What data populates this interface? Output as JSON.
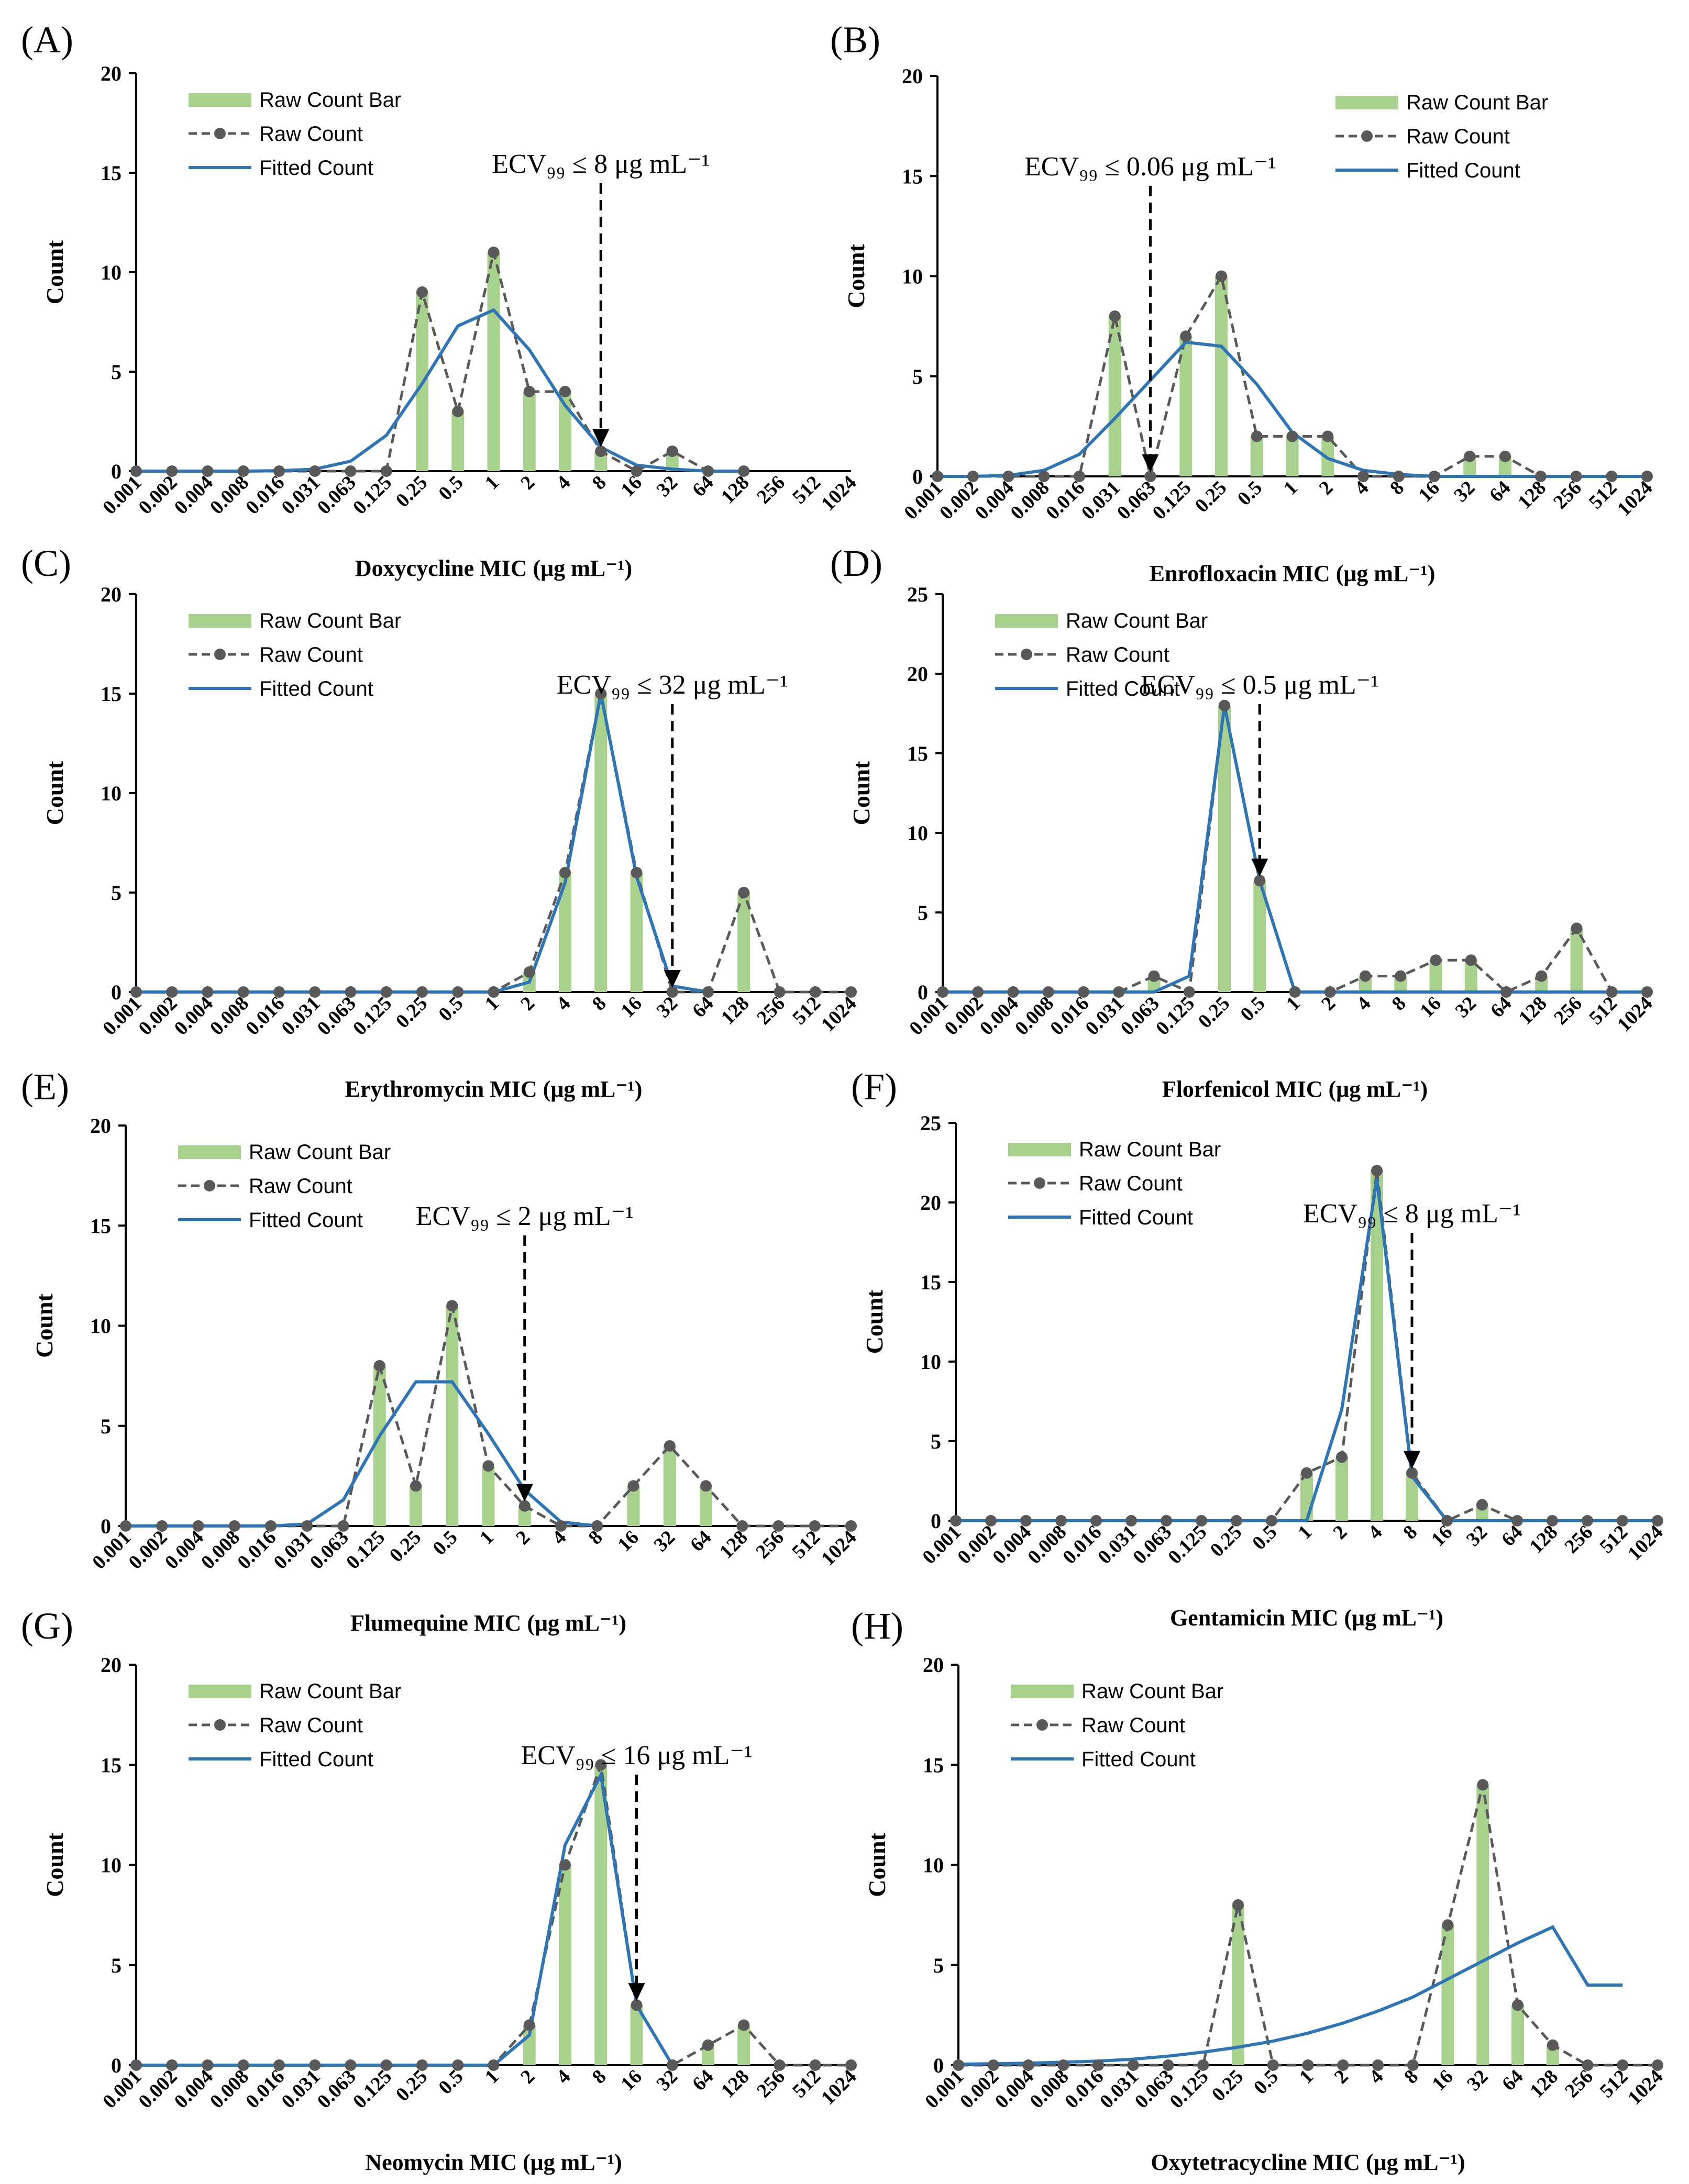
{
  "figure": {
    "categories": [
      "0.001",
      "0.002",
      "0.004",
      "0.008",
      "0.016",
      "0.031",
      "0.063",
      "0.125",
      "0.25",
      "0.5",
      "1",
      "2",
      "4",
      "8",
      "16",
      "32",
      "64",
      "128",
      "256",
      "512",
      "1024"
    ],
    "legend": {
      "bar": "Raw Count Bar",
      "raw": "Raw Count",
      "fit": "Fitted Count"
    },
    "ylabel": "Count",
    "colors": {
      "bar": "#a9d18e",
      "raw": "#595959",
      "fit": "#2e75b6",
      "axis": "#000000"
    }
  },
  "chart_data": [
    {
      "panel": "(A)",
      "type": "bar",
      "title": "",
      "xlabel": "Doxycycline MIC (μg mL⁻¹)",
      "ylabel": "Count",
      "ylim": [
        0,
        20
      ],
      "yticks": [
        0,
        5,
        10,
        15,
        20
      ],
      "legend_position": "top-left",
      "ecv": {
        "index": 13,
        "label": "ECV₉₉ ≤ 8 μg mL⁻¹"
      },
      "raw": [
        0,
        0,
        0,
        0,
        0,
        0,
        0,
        0,
        9,
        3,
        11,
        4,
        4,
        1,
        0,
        1,
        0,
        0,
        null,
        null,
        null
      ],
      "fitted": [
        0,
        0,
        0,
        0,
        0.02,
        0.1,
        0.5,
        1.8,
        4.4,
        7.3,
        8.1,
        6.1,
        3.3,
        1.2,
        0.3,
        0.1,
        0,
        0,
        null,
        null,
        null
      ]
    },
    {
      "panel": "(B)",
      "type": "bar",
      "title": "",
      "xlabel": "Enrofloxacin MIC (μg mL⁻¹)",
      "ylabel": "Count",
      "ylim": [
        0,
        20
      ],
      "yticks": [
        0,
        5,
        10,
        15,
        20
      ],
      "legend_position": "top-right",
      "ecv": {
        "index": 6,
        "label": "ECV₉₉ ≤ 0.06 μg mL⁻¹"
      },
      "raw": [
        0,
        0,
        0,
        0,
        0,
        8,
        0,
        7,
        10,
        2,
        2,
        2,
        0,
        0,
        0,
        1,
        1,
        0,
        0,
        0,
        0
      ],
      "fitted": [
        0,
        0,
        0.05,
        0.3,
        1.1,
        2.9,
        4.8,
        6.7,
        6.5,
        4.6,
        2.2,
        0.9,
        0.3,
        0.1,
        0,
        0,
        0,
        0,
        0,
        0,
        0
      ]
    },
    {
      "panel": "(C)",
      "type": "bar",
      "title": "",
      "xlabel": "Erythromycin MIC (μg mL⁻¹)",
      "ylabel": "Count",
      "ylim": [
        0,
        20
      ],
      "yticks": [
        0,
        5,
        10,
        15,
        20
      ],
      "legend_position": "top-left",
      "ecv": {
        "index": 15,
        "label": "ECV₉₉ ≤ 32 μg mL⁻¹"
      },
      "raw": [
        0,
        0,
        0,
        0,
        0,
        0,
        0,
        0,
        0,
        0,
        0,
        1,
        6,
        15,
        6,
        0,
        0,
        5,
        0,
        0,
        0
      ],
      "fitted": [
        0,
        0,
        0,
        0,
        0,
        0,
        0,
        0,
        0,
        0,
        0,
        0.5,
        5.5,
        15,
        5.8,
        0.3,
        0,
        null,
        null,
        null,
        null
      ]
    },
    {
      "panel": "(D)",
      "type": "bar",
      "title": "",
      "xlabel": "Florfenicol MIC (μg mL⁻¹)",
      "ylabel": "Count",
      "ylim": [
        0,
        25
      ],
      "yticks": [
        0,
        5,
        10,
        15,
        20,
        25
      ],
      "legend_position": "top-left",
      "ecv": {
        "index": 9,
        "label": "ECV₉₉ ≤ 0.5 μg mL⁻¹"
      },
      "raw": [
        0,
        0,
        0,
        0,
        0,
        0,
        1,
        0,
        18,
        7,
        0,
        0,
        1,
        1,
        2,
        2,
        0,
        1,
        4,
        0,
        0
      ],
      "fitted": [
        0,
        0,
        0,
        0,
        0,
        0,
        0,
        1,
        18,
        7,
        0,
        0,
        0,
        0,
        0,
        0,
        0,
        0,
        0,
        0,
        0
      ]
    },
    {
      "panel": "(E)",
      "type": "bar",
      "title": "",
      "xlabel": "Flumequine MIC (μg mL⁻¹)",
      "ylabel": "Count",
      "ylim": [
        0,
        20
      ],
      "yticks": [
        0,
        5,
        10,
        15,
        20
      ],
      "legend_position": "top-left",
      "ecv": {
        "index": 11,
        "label": "ECV₉₉ ≤ 2 μg mL⁻¹"
      },
      "raw": [
        0,
        0,
        0,
        0,
        0,
        0,
        0,
        8,
        2,
        11,
        3,
        1,
        0,
        0,
        2,
        4,
        2,
        0,
        0,
        0,
        0
      ],
      "fitted": [
        0,
        0,
        0,
        0,
        0,
        0.1,
        1.3,
        4.5,
        7.2,
        7.2,
        4.6,
        1.8,
        0.2,
        0,
        null,
        null,
        null,
        null,
        null,
        null,
        null
      ]
    },
    {
      "panel": "(F)",
      "type": "bar",
      "title": "",
      "xlabel": "Gentamicin MIC (μg mL⁻¹)",
      "ylabel": "Count",
      "ylim": [
        0,
        25
      ],
      "yticks": [
        0,
        5,
        10,
        15,
        20,
        25
      ],
      "legend_position": "top-left",
      "ecv": {
        "index": 13,
        "label": "ECV₉₉ ≤ 8 μg mL⁻¹"
      },
      "raw": [
        0,
        0,
        0,
        0,
        0,
        0,
        0,
        0,
        0,
        0,
        3,
        4,
        22,
        3,
        0,
        1,
        0,
        0,
        0,
        0,
        0
      ],
      "fitted": [
        0,
        0,
        0,
        0,
        0,
        0,
        0,
        0,
        0,
        0,
        0,
        7,
        21.5,
        2.8,
        0,
        0,
        0,
        0,
        0,
        0,
        0
      ]
    },
    {
      "panel": "(G)",
      "type": "bar",
      "title": "",
      "xlabel": "Neomycin MIC (μg mL⁻¹)",
      "ylabel": "Count",
      "ylim": [
        0,
        20
      ],
      "yticks": [
        0,
        5,
        10,
        15,
        20
      ],
      "legend_position": "top-left",
      "ecv": {
        "index": 14,
        "label": "ECV₉₉ ≤ 16 μg mL⁻¹"
      },
      "raw": [
        0,
        0,
        0,
        0,
        0,
        0,
        0,
        0,
        0,
        0,
        0,
        2,
        10,
        15,
        3,
        0,
        1,
        2,
        0,
        0,
        0
      ],
      "fitted": [
        0,
        0,
        0,
        0,
        0,
        0,
        0,
        0,
        0,
        0,
        0,
        1.5,
        11,
        14.5,
        3,
        0,
        null,
        null,
        null,
        null,
        null
      ]
    },
    {
      "panel": "(H)",
      "type": "bar",
      "title": "",
      "xlabel": "Oxytetracycline MIC (μg mL⁻¹)",
      "ylabel": "Count",
      "ylim": [
        0,
        20
      ],
      "yticks": [
        0,
        5,
        10,
        15,
        20
      ],
      "legend_position": "top-left",
      "ecv": null,
      "raw": [
        0,
        0,
        0,
        0,
        0,
        0,
        0,
        0,
        8,
        0,
        0,
        0,
        0,
        0,
        7,
        14,
        3,
        1,
        0,
        0,
        0
      ],
      "fitted": [
        0.05,
        0.07,
        0.1,
        0.15,
        0.2,
        0.3,
        0.45,
        0.65,
        0.9,
        1.2,
        1.6,
        2.1,
        2.7,
        3.4,
        4.3,
        5.2,
        6.1,
        6.9,
        4,
        4,
        null
      ]
    }
  ]
}
